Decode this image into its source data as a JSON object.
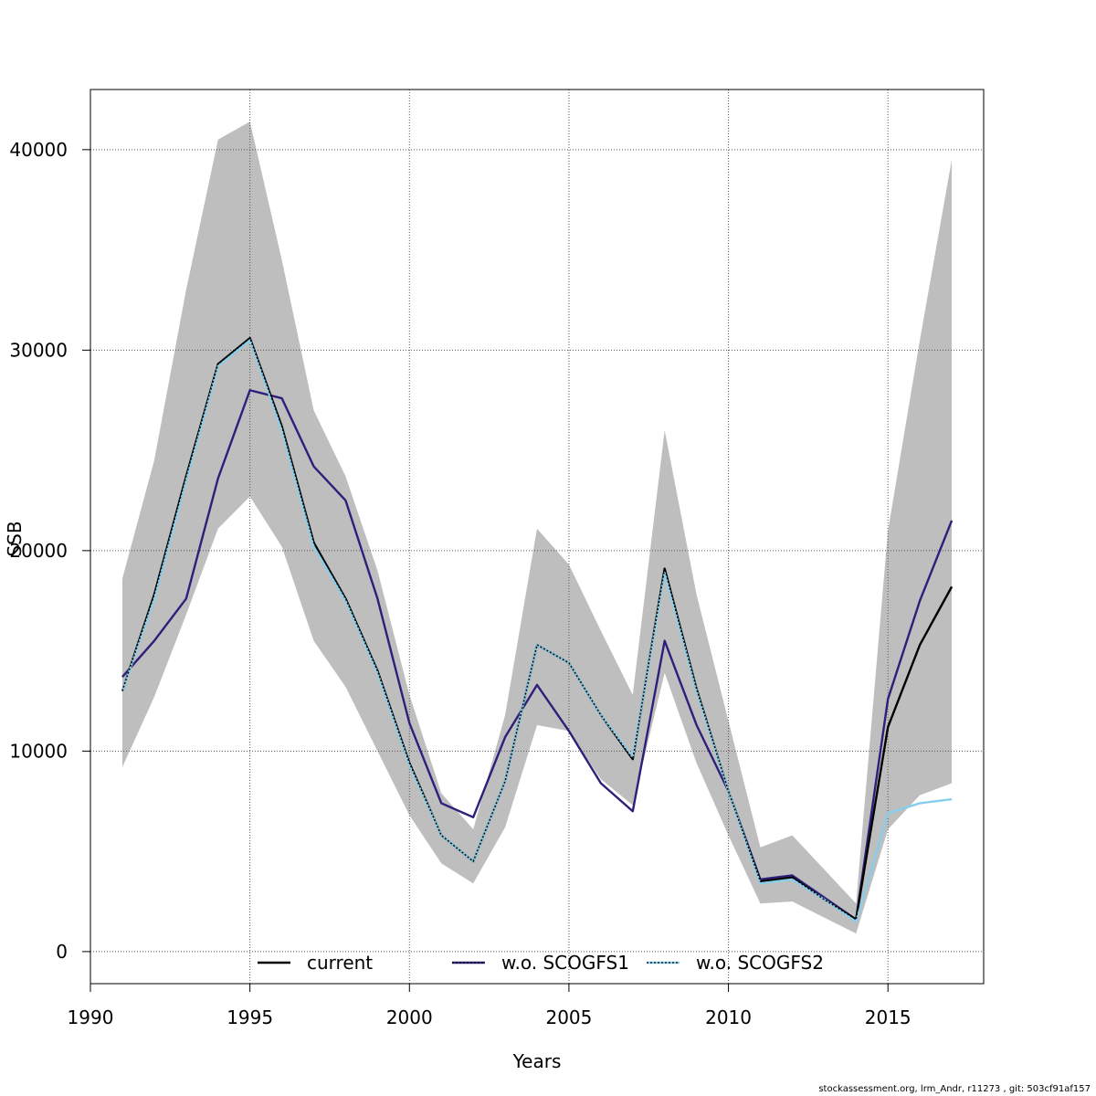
{
  "chart_data": {
    "type": "line",
    "xlabel": "Years",
    "ylabel": "SSB",
    "xlim": [
      1990,
      2018
    ],
    "ylim": [
      -1600,
      43000
    ],
    "x_ticks": [
      1990,
      1995,
      2000,
      2005,
      2010,
      2015
    ],
    "y_ticks": [
      0,
      10000,
      20000,
      30000,
      40000
    ],
    "x_tick_labels": [
      "1990",
      "1995",
      "2000",
      "2005",
      "2010",
      "2015"
    ],
    "y_tick_labels": [
      "0",
      "10000",
      "20000",
      "30000",
      "40000"
    ],
    "grid": true,
    "legend_position": "bottom",
    "x": [
      1991,
      1992,
      1993,
      1994,
      1995,
      1996,
      1997,
      1998,
      1999,
      2000,
      2001,
      2002,
      2003,
      2004,
      2005,
      2006,
      2007,
      2008,
      2009,
      2010,
      2011,
      2012,
      2013,
      2014,
      2015,
      2016,
      2017
    ],
    "confidence_band": {
      "color": "#bebebe",
      "upper": [
        18600,
        24500,
        33000,
        40500,
        41400,
        34500,
        27000,
        23700,
        19000,
        12800,
        7900,
        6100,
        11800,
        21100,
        19300,
        16000,
        12800,
        26000,
        17800,
        11500,
        5200,
        5800,
        4100,
        2400,
        21000,
        30500,
        39500
      ],
      "lower": [
        9200,
        12700,
        16800,
        21100,
        22700,
        20200,
        15500,
        13200,
        10000,
        6800,
        4400,
        3400,
        6200,
        11300,
        11000,
        8600,
        7300,
        13900,
        9400,
        5800,
        2400,
        2500,
        1700,
        900,
        6100,
        7800,
        8400
      ]
    },
    "series": [
      {
        "name": "current",
        "color": "#000000",
        "dash": "solid",
        "values": [
          13000,
          17800,
          23700,
          29300,
          30600,
          26200,
          20400,
          17600,
          14000,
          9400,
          5800,
          4500,
          8500,
          15300,
          14400,
          11800,
          9600,
          19100,
          13100,
          8000,
          3500,
          3700,
          2600,
          1600,
          11200,
          15300,
          18200
        ]
      },
      {
        "name": "w.o. SCOGFS1",
        "color": "#2e1f7a",
        "dash": "solid",
        "values": [
          13700,
          15500,
          17600,
          23600,
          28000,
          27600,
          24200,
          22500,
          17600,
          11400,
          7400,
          6700,
          10700,
          13300,
          11000,
          8400,
          7000,
          15500,
          11300,
          8000,
          3600,
          3800,
          2700,
          1600,
          12600,
          17500,
          21500
        ]
      },
      {
        "name": "w.o. SCOGFS2",
        "color": "#87ceeb",
        "dash": "solid",
        "values": [
          13000,
          17600,
          23500,
          29200,
          30500,
          26000,
          20200,
          17500,
          13900,
          9300,
          5800,
          4500,
          8500,
          15300,
          14400,
          11800,
          9700,
          18900,
          13000,
          8000,
          3400,
          3600,
          2600,
          1500,
          6900,
          7400,
          7600
        ]
      }
    ],
    "legend": [
      {
        "label": "current",
        "color": "#000000",
        "overlay": null
      },
      {
        "label": "w.o. SCOGFS1",
        "color": "#2e1f7a",
        "overlay": "#000000"
      },
      {
        "label": "w.o. SCOGFS2",
        "color": "#87ceeb",
        "overlay": "#000000"
      }
    ]
  },
  "footer": "stockassessment.org, lrm_Andr, r11273 , git: 503cf91af157"
}
